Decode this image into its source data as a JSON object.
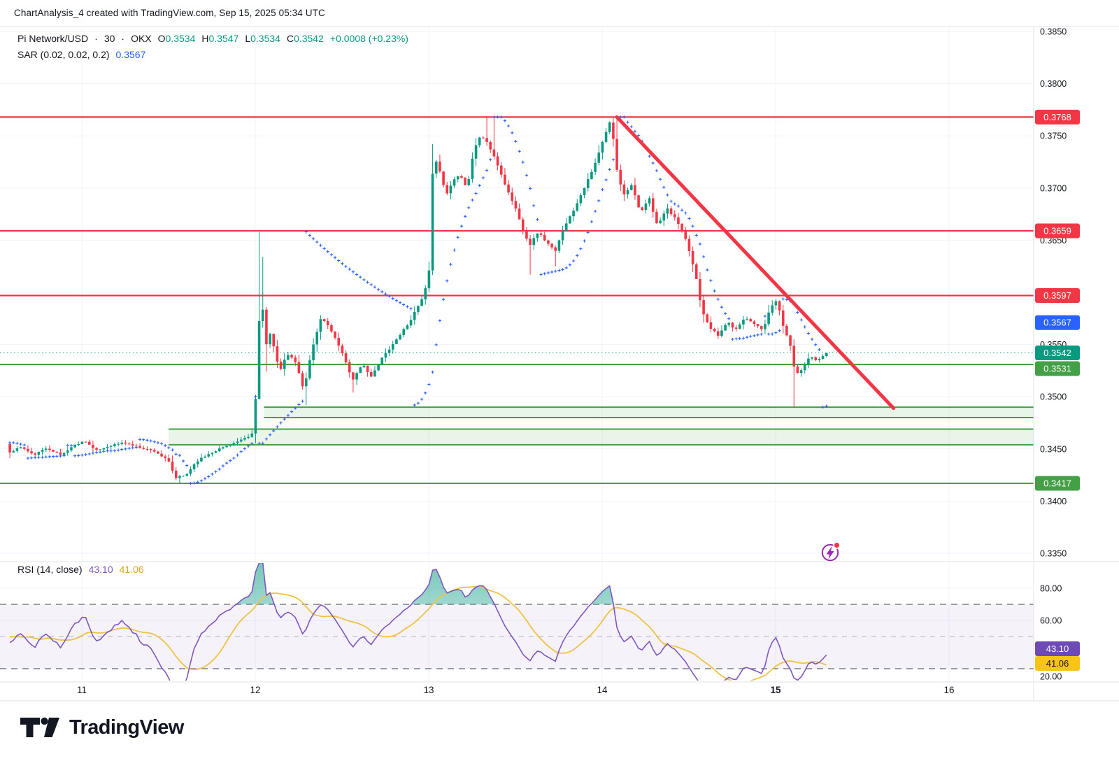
{
  "header": {
    "title": "ChartAnalysis_4 created with TradingView.com, Sep 15, 2025 05:34 UTC"
  },
  "legend": {
    "symbol": "Pi Network/USD",
    "sep": "·",
    "interval": "30",
    "exchange": "OKX",
    "o_label": "O",
    "o": "0.3534",
    "h_label": "H",
    "h": "0.3547",
    "l_label": "L",
    "l": "0.3534",
    "c_label": "C",
    "c": "0.3542",
    "change": "+0.0008 (+0.23%)",
    "sar_label": "SAR (0.02, 0.02, 0.2)",
    "sar_value": "0.3567",
    "rsi_label": "RSI (14, close)",
    "rsi_value": "43.10",
    "rsi_ma_value": "41.06"
  },
  "footer": {
    "logo_text": "TradingView"
  },
  "colors": {
    "up": "#089981",
    "down": "#F23645",
    "red_line": "#F23645",
    "green_line": "#43A047",
    "zone_fill": "rgba(76,175,80,0.13)",
    "psar": "#2962FF",
    "rsi_line": "#7E57C2",
    "rsi_ma_line": "#EFC343",
    "rsi_band": "rgba(126,87,194,0.08)",
    "grid": "#F0F3FA",
    "separator": "#E0E3EB",
    "axis_text": "#131722",
    "badge_blue": "#2962FF",
    "badge_teal": "#089981",
    "badge_green": "#43A047",
    "badge_red": "#F23645",
    "badge_purple": "#6D4AB5",
    "badge_yellow": "#F8C417",
    "flash_icon": "#9C27B0"
  },
  "chart_data": {
    "type": "candlestick",
    "title": "Pi Network/USD · 30 · OKX",
    "price_axis": {
      "range": [
        0.333,
        0.3855
      ],
      "ticks": [
        {
          "label": "0.3850",
          "v": 0.385
        },
        {
          "label": "0.3800",
          "v": 0.38
        },
        {
          "label": "0.3750",
          "v": 0.375
        },
        {
          "label": "0.3700",
          "v": 0.37
        },
        {
          "label": "0.3650",
          "v": 0.365
        },
        {
          "label": "0.3550",
          "v": 0.355
        },
        {
          "label": "0.3500",
          "v": 0.35
        },
        {
          "label": "0.3450",
          "v": 0.345
        },
        {
          "label": "0.3400",
          "v": 0.34
        },
        {
          "label": "0.3350",
          "v": 0.335
        }
      ],
      "badges": [
        {
          "label": "0.3768",
          "price": 0.3768,
          "bg": "badge_red",
          "fg": "#FFFFFF"
        },
        {
          "label": "0.3659",
          "price": 0.3659,
          "bg": "badge_red",
          "fg": "#FFFFFF"
        },
        {
          "label": "0.3597",
          "price": 0.3597,
          "bg": "badge_red",
          "fg": "#FFFFFF"
        },
        {
          "label": "0.3567",
          "price": 0.3567,
          "bg": "badge_blue",
          "fg": "#FFFFFF"
        },
        {
          "label": "0.3542",
          "price": 0.3542,
          "bg": "badge_teal",
          "fg": "#FFFFFF"
        },
        {
          "label": "0.3531",
          "price": 0.3531,
          "bg": "badge_green",
          "fg": "#FFFFFF"
        },
        {
          "label": "0.3417",
          "price": 0.3417,
          "bg": "badge_green",
          "fg": "#FFFFFF"
        }
      ]
    },
    "time_axis": {
      "ticks": [
        {
          "label": "11",
          "t": 11
        },
        {
          "label": "12",
          "t": 12
        },
        {
          "label": "13",
          "t": 13
        },
        {
          "label": "14",
          "t": 14
        },
        {
          "label": "15",
          "t": 15,
          "bold": true
        },
        {
          "label": "16",
          "t": 16
        }
      ]
    },
    "levels": {
      "resistance": [
        0.3768,
        0.3659,
        0.3597
      ],
      "support": [
        0.3531,
        0.3417
      ],
      "current_price": 0.3542,
      "current_sar": 0.3567
    },
    "zones": [
      {
        "top": 0.349,
        "bottom": 0.348,
        "from_t": 12.05
      },
      {
        "top": 0.3469,
        "bottom": 0.3454,
        "from_t": 11.5
      }
    ],
    "trendline": {
      "from": {
        "t": 14.085,
        "price": 0.3768
      },
      "to": {
        "t": 15.68,
        "price": 0.3489
      }
    },
    "indicators": {
      "sar": {
        "start": 0.02,
        "increment": 0.02,
        "max": 0.2,
        "last": 0.3567
      },
      "rsi": {
        "length": 14,
        "source": "close",
        "last": 43.1,
        "overbought": 70,
        "middle": 50,
        "oversold": 30
      },
      "rsi_ma": {
        "length": 14,
        "last": 41.06
      }
    },
    "rsi_axis": {
      "ticks": [
        {
          "label": "80.00",
          "v": 80
        },
        {
          "label": "60.00",
          "v": 60
        },
        {
          "label": "20.00",
          "v": 20
        }
      ],
      "badges": [
        {
          "label": "43.10",
          "bg": "badge_purple",
          "fg": "#FFFFFF"
        },
        {
          "label": "41.06",
          "bg": "badge_yellow",
          "fg": "#131722"
        }
      ]
    },
    "series": {
      "t_start": 10.585,
      "t_end": 15.285,
      "interval_days": 0.0208333,
      "anchors": [
        [
          10.585,
          0.3447
        ],
        [
          10.65,
          0.3452
        ],
        [
          10.72,
          0.3444
        ],
        [
          10.8,
          0.3451
        ],
        [
          10.88,
          0.3444
        ],
        [
          10.95,
          0.3453
        ],
        [
          11.02,
          0.3458
        ],
        [
          11.08,
          0.3448
        ],
        [
          11.16,
          0.3453
        ],
        [
          11.24,
          0.3456
        ],
        [
          11.32,
          0.3452
        ],
        [
          11.42,
          0.3448
        ],
        [
          11.5,
          0.3438
        ],
        [
          11.54,
          0.3422
        ],
        [
          11.6,
          0.3425
        ],
        [
          11.66,
          0.3438
        ],
        [
          11.74,
          0.3446
        ],
        [
          11.82,
          0.3452
        ],
        [
          11.9,
          0.3457
        ],
        [
          11.97,
          0.3462
        ],
        [
          11.995,
          0.3468
        ],
        [
          12.016,
          0.3562
        ],
        [
          12.037,
          0.3596
        ],
        [
          12.062,
          0.3549
        ],
        [
          12.085,
          0.356
        ],
        [
          12.11,
          0.3545
        ],
        [
          12.14,
          0.3524
        ],
        [
          12.18,
          0.3541
        ],
        [
          12.23,
          0.3534
        ],
        [
          12.28,
          0.3506
        ],
        [
          12.33,
          0.3548
        ],
        [
          12.38,
          0.3576
        ],
        [
          12.43,
          0.3566
        ],
        [
          12.5,
          0.3543
        ],
        [
          12.56,
          0.3516
        ],
        [
          12.62,
          0.3531
        ],
        [
          12.67,
          0.3519
        ],
        [
          12.73,
          0.3537
        ],
        [
          12.81,
          0.3554
        ],
        [
          12.89,
          0.3572
        ],
        [
          12.96,
          0.3593
        ],
        [
          13.0,
          0.3613
        ],
        [
          13.027,
          0.3733
        ],
        [
          13.06,
          0.3719
        ],
        [
          13.1,
          0.3693
        ],
        [
          13.14,
          0.3707
        ],
        [
          13.18,
          0.3714
        ],
        [
          13.22,
          0.3699
        ],
        [
          13.26,
          0.3736
        ],
        [
          13.3,
          0.3751
        ],
        [
          13.34,
          0.3743
        ],
        [
          13.4,
          0.3721
        ],
        [
          13.45,
          0.3699
        ],
        [
          13.5,
          0.3681
        ],
        [
          13.55,
          0.3656
        ],
        [
          13.585,
          0.3646
        ],
        [
          13.63,
          0.3658
        ],
        [
          13.68,
          0.3648
        ],
        [
          13.73,
          0.3639
        ],
        [
          13.78,
          0.3663
        ],
        [
          13.83,
          0.3677
        ],
        [
          13.89,
          0.3698
        ],
        [
          13.95,
          0.3719
        ],
        [
          14.0,
          0.3743
        ],
        [
          14.05,
          0.3766
        ],
        [
          14.09,
          0.3711
        ],
        [
          14.13,
          0.3693
        ],
        [
          14.17,
          0.3704
        ],
        [
          14.22,
          0.3675
        ],
        [
          14.27,
          0.3691
        ],
        [
          14.32,
          0.3663
        ],
        [
          14.37,
          0.3681
        ],
        [
          14.43,
          0.3669
        ],
        [
          14.49,
          0.3647
        ],
        [
          14.54,
          0.3616
        ],
        [
          14.575,
          0.3583
        ],
        [
          14.62,
          0.3567
        ],
        [
          14.67,
          0.3558
        ],
        [
          14.72,
          0.3572
        ],
        [
          14.77,
          0.3564
        ],
        [
          14.82,
          0.3576
        ],
        [
          14.88,
          0.357
        ],
        [
          14.93,
          0.3564
        ],
        [
          14.97,
          0.3586
        ],
        [
          15.01,
          0.3592
        ],
        [
          15.05,
          0.3563
        ],
        [
          15.08,
          0.3554
        ],
        [
          15.115,
          0.352
        ],
        [
          15.16,
          0.3528
        ],
        [
          15.2,
          0.354
        ],
        [
          15.24,
          0.3534
        ],
        [
          15.285,
          0.3542
        ]
      ],
      "spikes": [
        {
          "t": 11.56,
          "low": 0.3417
        },
        {
          "t": 12.016,
          "high": 0.3658
        },
        {
          "t": 12.037,
          "high": 0.3634
        },
        {
          "t": 12.062,
          "low": 0.3524
        },
        {
          "t": 12.285,
          "low": 0.3492
        },
        {
          "t": 12.56,
          "low": 0.3504
        },
        {
          "t": 13.027,
          "high": 0.3742
        },
        {
          "t": 13.33,
          "high": 0.3768
        },
        {
          "t": 13.385,
          "high": 0.3768
        },
        {
          "t": 13.585,
          "low": 0.3617
        },
        {
          "t": 13.73,
          "low": 0.3625
        },
        {
          "t": 14.055,
          "high": 0.3768
        },
        {
          "t": 14.09,
          "high": 0.3768
        },
        {
          "t": 14.6,
          "low": 0.3574
        },
        {
          "t": 15.115,
          "low": 0.349
        }
      ]
    }
  }
}
